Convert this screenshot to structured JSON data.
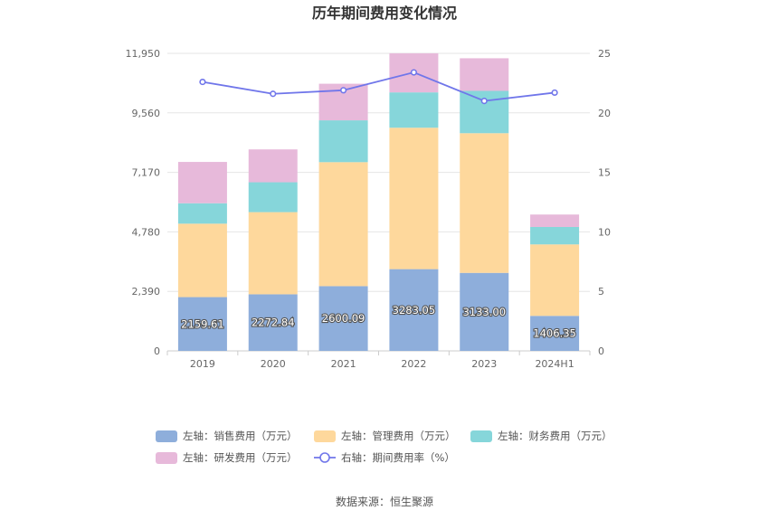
{
  "title": "历年期间费用变化情况",
  "source": "数据来源：恒生聚源",
  "chart_data": {
    "type": "bar",
    "stacked": true,
    "categories": [
      "2019",
      "2020",
      "2021",
      "2022",
      "2023",
      "2024H1"
    ],
    "left_axis": {
      "ticks": [
        "0",
        "2,390",
        "4,780",
        "7,170",
        "9,560",
        "11,950"
      ],
      "ylim": [
        0,
        11950
      ]
    },
    "right_axis": {
      "ticks": [
        "0",
        "5",
        "10",
        "15",
        "20",
        "25"
      ],
      "ylim": [
        0,
        25
      ]
    },
    "series": [
      {
        "name": "左轴：销售费用（万元）",
        "type": "bar",
        "color": "#8eaedb",
        "values": [
          2159.61,
          2272.84,
          2600.09,
          3283.05,
          3133.0,
          1406.35
        ],
        "labels": [
          "2159.61",
          "2272.84",
          "2600.09",
          "3283.05",
          "3133.00",
          "1406.35"
        ]
      },
      {
        "name": "左轴：管理费用（万元）",
        "type": "bar",
        "color": "#fed89c",
        "values": [
          2950,
          3300,
          4980,
          5680,
          5610,
          2870
        ]
      },
      {
        "name": "左轴：财务费用（万元）",
        "type": "bar",
        "color": "#86d6da",
        "values": [
          820,
          1200,
          1680,
          1420,
          1700,
          700
        ]
      },
      {
        "name": "左轴：研发费用（万元）",
        "type": "bar",
        "color": "#e7b9da",
        "values": [
          1660,
          1320,
          1470,
          1570,
          1310,
          500
        ]
      },
      {
        "name": "右轴：期间费用率（%）",
        "type": "line",
        "axis": "right",
        "color": "#7076ea",
        "values": [
          22.6,
          21.6,
          21.9,
          23.4,
          21.0,
          21.7
        ]
      }
    ],
    "legend": "bottom",
    "grid": true
  }
}
